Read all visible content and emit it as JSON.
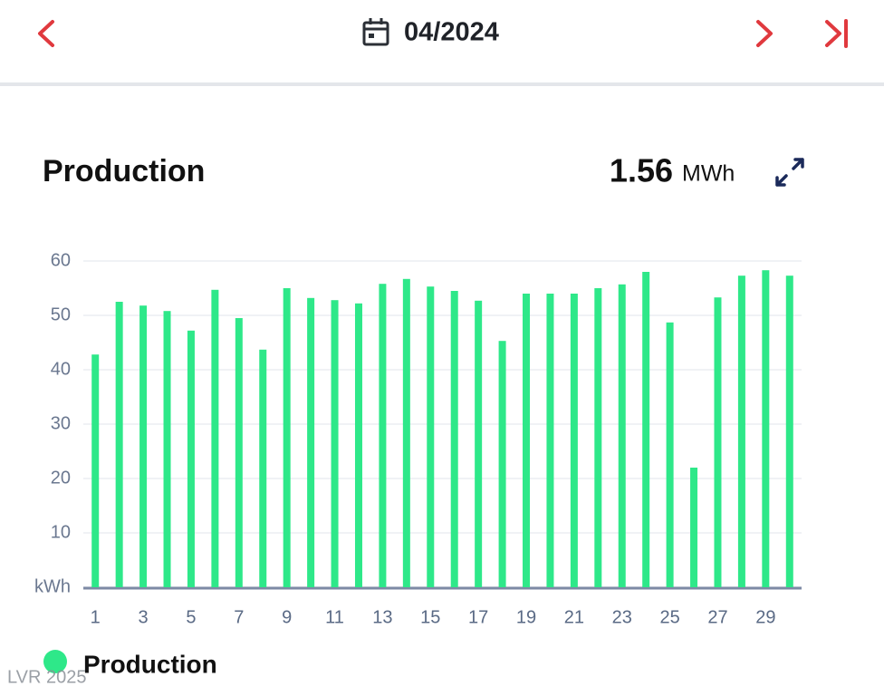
{
  "header": {
    "date": "04/2024"
  },
  "card": {
    "total": "1.56",
    "unit": "MWh"
  },
  "watermark": "LVR 2025",
  "chart_data": {
    "type": "bar",
    "title": "Production",
    "categories": [
      1,
      null,
      3,
      null,
      5,
      null,
      7,
      null,
      9,
      null,
      11,
      null,
      13,
      null,
      15,
      null,
      17,
      null,
      19,
      null,
      21,
      null,
      23,
      null,
      25,
      null,
      27,
      null,
      29,
      null
    ],
    "series": [
      {
        "name": "Production",
        "color": "#2ee889",
        "values": [
          42.8,
          52.5,
          51.8,
          50.8,
          47.2,
          54.7,
          49.5,
          43.7,
          55,
          53.2,
          52.8,
          52.2,
          55.8,
          56.7,
          55.3,
          54.5,
          52.7,
          45.3,
          54,
          54,
          54,
          55,
          55.7,
          58,
          48.7,
          22,
          53.3,
          57.3,
          58.3,
          57.3
        ]
      }
    ],
    "ylim": [
      0,
      60
    ],
    "yticks": [
      {
        "value": 0,
        "label": "kWh"
      },
      10,
      20,
      30,
      40,
      50,
      60
    ],
    "grid": true
  }
}
